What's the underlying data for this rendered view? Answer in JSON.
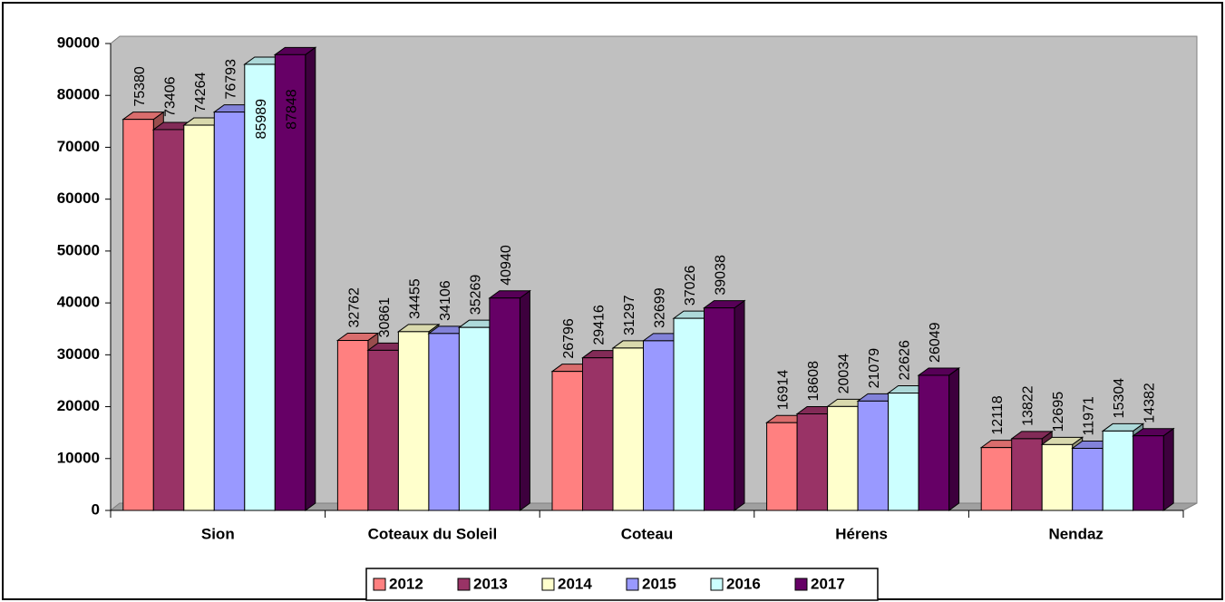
{
  "chart_data": {
    "type": "bar",
    "categories": [
      "Sion",
      "Coteaux du Soleil",
      "Coteau",
      "Hérens",
      "Nendaz"
    ],
    "series": [
      {
        "name": "2012",
        "color": "#ff8080",
        "values": [
          75380,
          32762,
          26796,
          16914,
          12118
        ]
      },
      {
        "name": "2013",
        "color": "#993366",
        "values": [
          73406,
          30861,
          29416,
          18608,
          13822
        ]
      },
      {
        "name": "2014",
        "color": "#ffffcc",
        "values": [
          74264,
          34455,
          31297,
          20034,
          12695
        ]
      },
      {
        "name": "2015",
        "color": "#9999ff",
        "values": [
          76793,
          34106,
          32699,
          21079,
          11971
        ]
      },
      {
        "name": "2016",
        "color": "#ccffff",
        "values": [
          85989,
          35269,
          37026,
          22626,
          15304
        ]
      },
      {
        "name": "2017",
        "color": "#660066",
        "values": [
          87848,
          40940,
          39038,
          26049,
          14382
        ]
      }
    ],
    "ylim": [
      0,
      90000
    ],
    "yticks": [
      0,
      10000,
      20000,
      30000,
      40000,
      50000,
      60000,
      70000,
      80000,
      90000
    ],
    "legend": "bottom"
  }
}
